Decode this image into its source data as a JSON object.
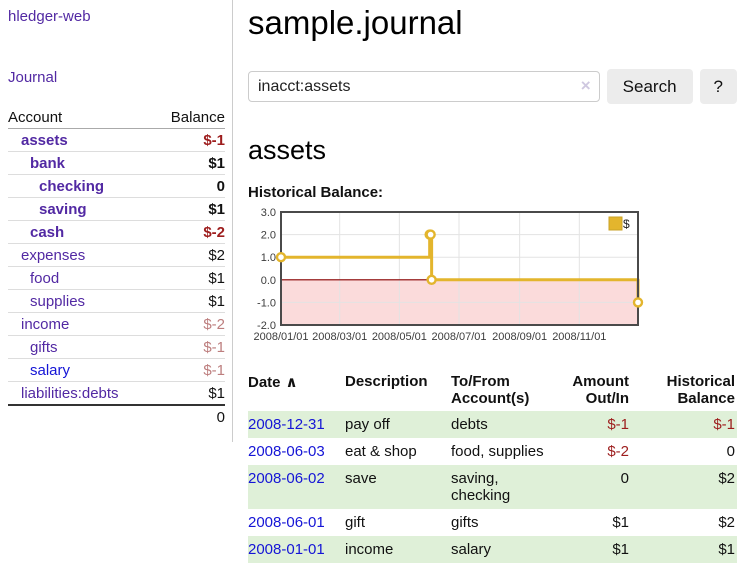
{
  "colors": {
    "link_purple": "#5229a3",
    "link_blue": "#1515d6",
    "text": "#111111",
    "negative_bold": "#9d1d1d",
    "negative_muted": "#bd7e7e",
    "row_stripe_green": "#dff0d8",
    "chart_gold": "#e3b52d",
    "chart_gold_border": "#c9a227",
    "chart_negative_zone": "#fbdbdb",
    "chart_zero_line": "#8b0000",
    "chart_grid": "#e3e3e3",
    "chart_border": "#4a4a4a"
  },
  "sidebar": {
    "app_title": "hledger-web",
    "journal_link": "Journal",
    "table": {
      "headers": [
        "Account",
        "Balance"
      ],
      "rows": [
        {
          "label": "assets",
          "balance": "$-1",
          "level": 1,
          "bold": true,
          "label_color": "link_purple",
          "balance_color": "negative_bold"
        },
        {
          "label": "bank",
          "balance": "$1",
          "level": 2,
          "bold": true,
          "label_color": "link_purple",
          "balance_color": "text"
        },
        {
          "label": "checking",
          "balance": "0",
          "level": 3,
          "bold": true,
          "label_color": "link_purple",
          "balance_color": "text"
        },
        {
          "label": "saving",
          "balance": "$1",
          "level": 3,
          "bold": true,
          "label_color": "link_purple",
          "balance_color": "text"
        },
        {
          "label": "cash",
          "balance": "$-2",
          "level": 2,
          "bold": true,
          "label_color": "link_purple",
          "balance_color": "negative_bold"
        },
        {
          "label": "expenses",
          "balance": "$2",
          "level": 1,
          "bold": false,
          "label_color": "link_purple",
          "balance_color": "text"
        },
        {
          "label": "food",
          "balance": "$1",
          "level": 2,
          "bold": false,
          "label_color": "link_purple",
          "balance_color": "text"
        },
        {
          "label": "supplies",
          "balance": "$1",
          "level": 2,
          "bold": false,
          "label_color": "link_purple",
          "balance_color": "text"
        },
        {
          "label": "income",
          "balance": "$-2",
          "level": 1,
          "bold": false,
          "label_color": "link_purple",
          "balance_color": "negative_muted"
        },
        {
          "label": "gifts",
          "balance": "$-1",
          "level": 2,
          "bold": false,
          "label_color": "link_purple",
          "balance_color": "negative_muted"
        },
        {
          "label": "salary",
          "balance": "$-1",
          "level": 2,
          "bold": false,
          "label_color": "link_blue",
          "balance_color": "negative_muted"
        },
        {
          "label": "liabilities:debts",
          "balance": "$1",
          "level": 1,
          "bold": false,
          "label_color": "link_purple",
          "balance_color": "text"
        }
      ],
      "total": "0"
    }
  },
  "main": {
    "title": "sample.journal",
    "search": {
      "value": "inacct:assets",
      "clear_icon": "×",
      "button_label": "Search",
      "help_label": "?"
    },
    "account_heading": "assets",
    "chart_label": "Historical Balance:"
  },
  "chart_data": {
    "type": "line",
    "step": true,
    "title": "Historical Balance:",
    "series": [
      {
        "name": "$",
        "color": "#e3b52d",
        "dates": [
          "2008-01-01",
          "2008-06-01",
          "2008-06-02",
          "2008-06-03",
          "2008-12-31"
        ],
        "point_days": [
          0,
          152,
          153,
          154,
          365
        ],
        "values": [
          1,
          2,
          2,
          0,
          -1
        ]
      }
    ],
    "x_ticks": [
      "2008/01/01",
      "2008/03/01",
      "2008/05/01",
      "2008/07/01",
      "2008/09/01",
      "2008/11/01"
    ],
    "x_tick_days": [
      0,
      60,
      121,
      182,
      244,
      305
    ],
    "x_range_days": [
      0,
      365
    ],
    "y_ticks": [
      "3.0",
      "2.0",
      "1.0",
      "0.0",
      "-1.0",
      "-2.0"
    ],
    "y_tick_values": [
      3,
      2,
      1,
      0,
      -1,
      -2
    ],
    "ylim": [
      -2,
      3
    ],
    "grid": true,
    "legend": {
      "label": "$",
      "position": "top-right"
    }
  },
  "register": {
    "headers": [
      "Date",
      "Description",
      "To/From Account(s)",
      "Amount Out/In",
      "Historical Balance"
    ],
    "sort_glyph": "∧",
    "rows": [
      {
        "date": "2008-12-31",
        "description": "pay off",
        "accounts": "debts",
        "amount": "$-1",
        "balance": "$-1",
        "amount_color": "negative_bold",
        "balance_color": "negative_bold"
      },
      {
        "date": "2008-06-03",
        "description": "eat & shop",
        "accounts": "food, supplies",
        "amount": "$-2",
        "balance": "0",
        "amount_color": "negative_bold",
        "balance_color": "text"
      },
      {
        "date": "2008-06-02",
        "description": "save",
        "accounts": "saving, checking",
        "amount": "0",
        "balance": "$2",
        "amount_color": "text",
        "balance_color": "text"
      },
      {
        "date": "2008-06-01",
        "description": "gift",
        "accounts": "gifts",
        "amount": "$1",
        "balance": "$2",
        "amount_color": "text",
        "balance_color": "text"
      },
      {
        "date": "2008-01-01",
        "description": "income",
        "accounts": "salary",
        "amount": "$1",
        "balance": "$1",
        "amount_color": "text",
        "balance_color": "text"
      }
    ]
  }
}
